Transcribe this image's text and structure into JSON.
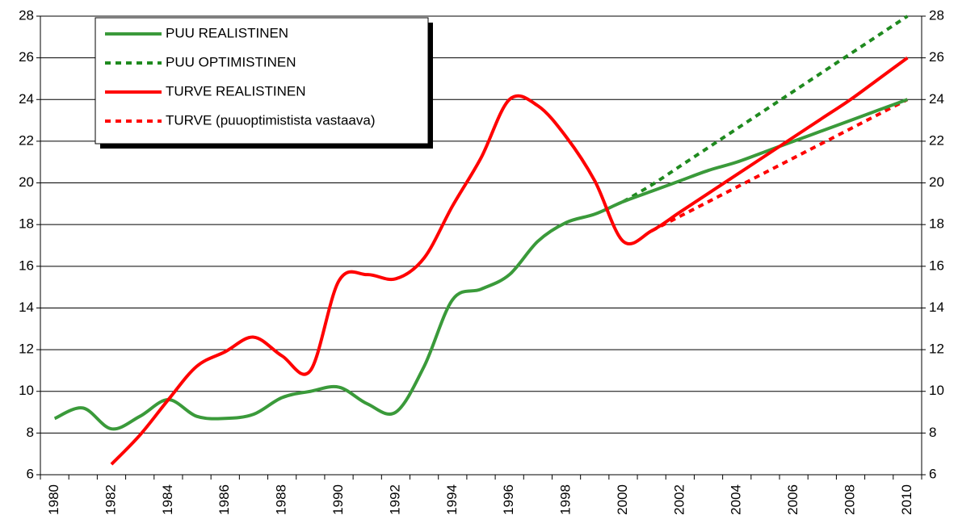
{
  "chart_data": {
    "type": "line",
    "categories": [
      "1980",
      null,
      "1982",
      null,
      "1984",
      null,
      "1986",
      null,
      "1988",
      null,
      "1990",
      null,
      "1992",
      null,
      "1994",
      null,
      "1996",
      null,
      "1998",
      null,
      "2000",
      null,
      "2002",
      null,
      "2004",
      null,
      "2006",
      null,
      "2008",
      null,
      "2010"
    ],
    "series": [
      {
        "name": "PUU REALISTINEN",
        "color": "#3a9a3a",
        "style": "solid",
        "values": [
          8.7,
          9.2,
          8.2,
          8.8,
          9.6,
          8.8,
          8.7,
          8.9,
          9.7,
          10.0,
          10.2,
          9.4,
          9.0,
          11.2,
          14.4,
          14.9,
          15.6,
          17.2,
          18.1,
          18.5,
          19.1,
          19.6,
          20.1,
          20.6,
          21.0,
          21.5,
          22.0,
          22.5,
          23.0,
          23.5,
          24.0
        ]
      },
      {
        "name": "PUU OPTIMISTINEN",
        "color": "#1f8a1f",
        "style": "dotted",
        "values": [
          null,
          null,
          null,
          null,
          null,
          null,
          null,
          null,
          null,
          null,
          null,
          null,
          null,
          null,
          null,
          null,
          null,
          null,
          null,
          null,
          19.1,
          19.9,
          20.8,
          21.7,
          22.6,
          23.5,
          24.4,
          25.3,
          26.2,
          27.1,
          28.0
        ]
      },
      {
        "name": "TURVE REALISTINEN",
        "color": "#ff0000",
        "style": "solid",
        "values": [
          null,
          null,
          6.5,
          7.9,
          9.6,
          11.2,
          11.9,
          12.6,
          11.7,
          11.0,
          15.3,
          15.6,
          15.4,
          16.4,
          18.9,
          21.2,
          24.0,
          23.7,
          22.2,
          20.1,
          17.2,
          17.7,
          18.6,
          19.5,
          20.4,
          21.3,
          22.2,
          23.1,
          24.0,
          25.0,
          26.0
        ]
      },
      {
        "name": "TURVE (puuoptimistista vastaava)",
        "color": "#ff0000",
        "style": "dotted",
        "values": [
          null,
          null,
          null,
          null,
          null,
          null,
          null,
          null,
          null,
          null,
          null,
          null,
          null,
          null,
          null,
          null,
          null,
          null,
          null,
          null,
          null,
          17.7,
          18.4,
          19.1,
          19.8,
          20.5,
          21.2,
          21.9,
          22.6,
          23.3,
          24.0
        ]
      }
    ],
    "ylim": [
      6,
      28
    ],
    "yticks": [
      6,
      8,
      10,
      12,
      14,
      16,
      18,
      20,
      22,
      24,
      26,
      28
    ],
    "y2lim": [
      6,
      28
    ],
    "y2ticks": [
      6,
      8,
      10,
      12,
      14,
      16,
      18,
      20,
      22,
      24,
      26,
      28
    ],
    "grid": true,
    "legend": "top-left"
  }
}
